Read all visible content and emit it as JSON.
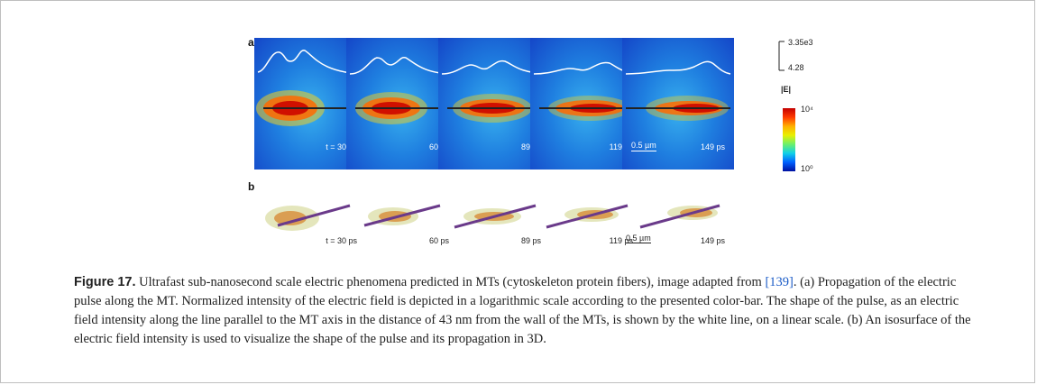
{
  "figure": {
    "panel_a_label": "a",
    "panel_b_label": "b",
    "time_labels": [
      "t = 30 ps",
      "60 ps",
      "89 ps",
      "119 ps",
      "149 ps"
    ],
    "scalebar_label": "0.5 µm",
    "scale_top": "3.35e3",
    "scale_bottom": "4.28",
    "colorbar_title": "|E|",
    "colorbar_max": "10⁴",
    "colorbar_min": "10⁰",
    "colors": {
      "background_low": "#1446c8",
      "background_mid": "#38b0ee",
      "hot": "#e02000",
      "pulse_line": "#ffffff"
    }
  },
  "caption": {
    "label": "Figure 17.",
    "text_before_ref": " Ultrafast sub-nanosecond scale electric phenomena predicted in MTs (cytoskeleton protein fibers), image adapted from ",
    "ref": "[139]",
    "text_after_ref": ". (a) Propagation of the electric pulse along the MT. Normalized intensity of the electric field is depicted in a logarithmic scale according to the presented color-bar. The shape of the pulse, as an electric field intensity along the line parallel to the MT axis in the distance of 43 nm from the wall of the MTs, is shown by the white line, on a linear scale. (b) An isosurface of the electric field intensity is used to visualize the shape of the pulse and its propagation in 3D."
  }
}
